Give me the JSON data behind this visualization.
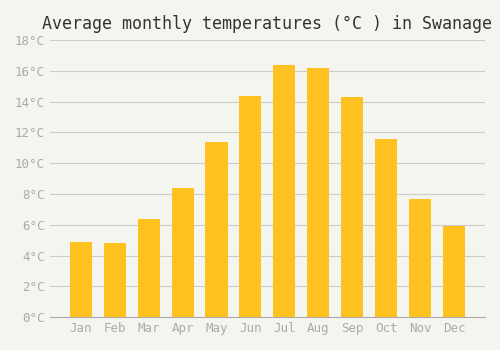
{
  "title": "Average monthly temperatures (°C ) in Swanage",
  "months": [
    "Jan",
    "Feb",
    "Mar",
    "Apr",
    "May",
    "Jun",
    "Jul",
    "Aug",
    "Sep",
    "Oct",
    "Nov",
    "Dec"
  ],
  "values": [
    4.9,
    4.8,
    6.4,
    8.4,
    11.4,
    14.4,
    16.4,
    16.2,
    14.3,
    11.6,
    7.7,
    5.9
  ],
  "bar_color_top": "#FFC120",
  "bar_color_bottom": "#FFB020",
  "background_color": "#F5F5F0",
  "grid_color": "#CCCCCC",
  "ylim": [
    0,
    18
  ],
  "yticks": [
    0,
    2,
    4,
    6,
    8,
    10,
    12,
    14,
    16,
    18
  ],
  "title_fontsize": 12,
  "tick_fontsize": 9,
  "tick_color": "#AAAAAA",
  "spine_color": "#AAAAAA"
}
